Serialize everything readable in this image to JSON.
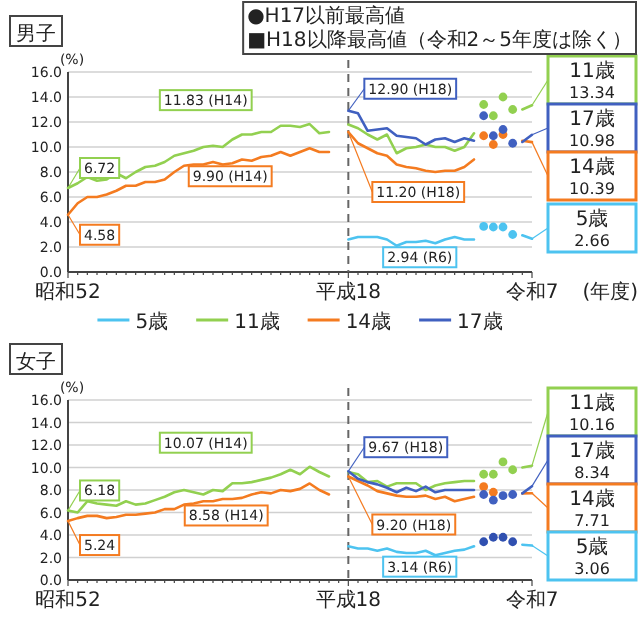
{
  "chart_data": [
    {
      "type": "line",
      "title": "男子",
      "ylabel": "(%)",
      "xlabel": "(年度)",
      "legend": "bottom",
      "grid": "y",
      "categories": [
        "昭和52",
        null,
        null,
        null,
        null,
        null,
        null,
        null,
        null,
        null,
        null,
        null,
        null,
        null,
        null,
        null,
        null,
        null,
        null,
        null,
        null,
        null,
        null,
        null,
        null,
        null,
        null,
        null,
        null,
        "平成18",
        null,
        null,
        null,
        null,
        null,
        null,
        null,
        null,
        null,
        null,
        null,
        null,
        null,
        null,
        null,
        null,
        null,
        null,
        "令和7"
      ],
      "ylim": [
        0,
        16
      ],
      "yticks": [
        {
          "value": 0,
          "label": "0.0"
        },
        {
          "value": 2,
          "label": "2.0"
        },
        {
          "value": 4,
          "label": "4.0"
        },
        {
          "value": 6,
          "label": "6.0"
        },
        {
          "value": 8,
          "label": "8.0"
        },
        {
          "value": 10,
          "label": "10.0"
        },
        {
          "value": 12,
          "label": "12.0"
        },
        {
          "value": 14,
          "label": "14.0"
        },
        {
          "value": 16,
          "label": "16.0"
        }
      ],
      "ref_lines": [
        {
          "axis": "x",
          "value": "平成18",
          "color": "#666666",
          "line_style": "dashed"
        }
      ],
      "series": [
        {
          "name": "5歳",
          "color": "#4dc3f0",
          "values": [
            null,
            null,
            null,
            null,
            null,
            null,
            null,
            null,
            null,
            null,
            null,
            null,
            null,
            null,
            null,
            null,
            null,
            null,
            null,
            null,
            null,
            null,
            null,
            null,
            null,
            null,
            null,
            null,
            null,
            2.6,
            2.8,
            2.8,
            2.8,
            2.6,
            2.1,
            2.4,
            2.4,
            2.5,
            2.3,
            2.6,
            2.8,
            2.6,
            2.6,
            null,
            null,
            null,
            null,
            2.94,
            2.66
          ]
        },
        {
          "name": "11歳",
          "color": "#92d050",
          "values": [
            6.72,
            7.1,
            7.6,
            7.3,
            7.4,
            7.9,
            7.5,
            8.0,
            8.4,
            8.5,
            8.8,
            9.3,
            9.5,
            9.7,
            10.0,
            10.1,
            10.0,
            10.6,
            11.0,
            11.0,
            11.2,
            11.2,
            11.7,
            11.7,
            11.6,
            11.83,
            11.1,
            11.2,
            null,
            11.8,
            11.5,
            11.0,
            10.6,
            11.0,
            9.5,
            9.9,
            10.0,
            10.2,
            10.0,
            10.0,
            9.7,
            10.0,
            11.1,
            null,
            null,
            null,
            null,
            13.0,
            13.34
          ]
        },
        {
          "name": "14歳",
          "color": "#f47b20",
          "values": [
            4.58,
            5.5,
            6.0,
            6.0,
            6.2,
            6.5,
            6.9,
            6.9,
            7.2,
            7.2,
            7.4,
            8.0,
            8.5,
            8.6,
            8.6,
            8.8,
            8.6,
            8.7,
            9.0,
            8.9,
            9.2,
            9.3,
            9.6,
            9.3,
            9.6,
            9.9,
            9.6,
            9.6,
            null,
            11.2,
            10.3,
            9.9,
            9.5,
            9.3,
            8.6,
            8.4,
            8.3,
            8.1,
            8.0,
            8.1,
            8.1,
            8.4,
            9.0,
            null,
            null,
            null,
            null,
            10.5,
            10.39
          ]
        },
        {
          "name": "17歳",
          "color": "#4060c0",
          "values": [
            null,
            null,
            null,
            null,
            null,
            null,
            null,
            null,
            null,
            null,
            null,
            null,
            null,
            null,
            null,
            null,
            null,
            null,
            null,
            null,
            null,
            null,
            null,
            null,
            null,
            null,
            null,
            null,
            null,
            12.9,
            12.7,
            11.3,
            11.4,
            11.5,
            10.9,
            10.8,
            10.7,
            10.2,
            10.6,
            10.7,
            10.4,
            10.7,
            10.5,
            null,
            null,
            null,
            null,
            10.4,
            10.98
          ]
        },
        {
          "type": "scatter",
          "color": "#4dc3f0",
          "values": [
            null,
            null,
            null,
            null,
            null,
            null,
            null,
            null,
            null,
            null,
            null,
            null,
            null,
            null,
            null,
            null,
            null,
            null,
            null,
            null,
            null,
            null,
            null,
            null,
            null,
            null,
            null,
            null,
            null,
            null,
            null,
            null,
            null,
            null,
            null,
            null,
            null,
            null,
            null,
            null,
            null,
            null,
            null,
            3.65,
            3.6,
            3.6,
            3.0,
            null,
            null
          ]
        },
        {
          "type": "scatter",
          "color": "#92d050",
          "values": [
            null,
            null,
            null,
            null,
            null,
            null,
            null,
            null,
            null,
            null,
            null,
            null,
            null,
            null,
            null,
            null,
            null,
            null,
            null,
            null,
            null,
            null,
            null,
            null,
            null,
            null,
            null,
            null,
            null,
            null,
            null,
            null,
            null,
            null,
            null,
            null,
            null,
            null,
            null,
            null,
            null,
            null,
            null,
            13.4,
            12.5,
            14.0,
            13.0,
            null,
            null
          ]
        },
        {
          "type": "scatter",
          "color": "#f47b20",
          "values": [
            null,
            null,
            null,
            null,
            null,
            null,
            null,
            null,
            null,
            null,
            null,
            null,
            null,
            null,
            null,
            null,
            null,
            null,
            null,
            null,
            null,
            null,
            null,
            null,
            null,
            null,
            null,
            null,
            null,
            null,
            null,
            null,
            null,
            null,
            null,
            null,
            null,
            null,
            null,
            null,
            null,
            null,
            null,
            10.9,
            10.2,
            11.0,
            null,
            null,
            null
          ]
        },
        {
          "type": "scatter",
          "color": "#4060c0",
          "values": [
            null,
            null,
            null,
            null,
            null,
            null,
            null,
            null,
            null,
            null,
            null,
            null,
            null,
            null,
            null,
            null,
            null,
            null,
            null,
            null,
            null,
            null,
            null,
            null,
            null,
            null,
            null,
            null,
            null,
            null,
            null,
            null,
            null,
            null,
            null,
            null,
            null,
            null,
            null,
            null,
            null,
            null,
            null,
            12.5,
            10.9,
            11.4,
            10.3,
            null,
            null
          ]
        }
      ],
      "annotations": [
        "●H17以前最高値",
        "■H18以降最高値（令和2～5年度は除く）",
        {
          "text": "6.72",
          "x": "昭和52",
          "y": 6.72
        },
        {
          "text": "4.58",
          "x": "昭和52",
          "y": 4.58
        },
        "11.83 (H14)",
        "9.90 (H14)",
        {
          "text": "12.90 (H18)",
          "x": "平成18",
          "y": 12.9
        },
        {
          "text": "11.20 (H18)",
          "x": "平成18",
          "y": 11.2
        },
        "2.94 (R6)",
        {
          "text": "11歳\n13.34",
          "x": "令和7",
          "y": 13.34
        },
        {
          "text": "17歳\n10.98",
          "x": "令和7",
          "y": 10.98
        },
        {
          "text": "14歳\n10.39",
          "x": "令和7",
          "y": 10.39
        },
        {
          "text": "5歳\n2.66",
          "x": "令和7",
          "y": 2.66
        }
      ]
    },
    {
      "type": "line",
      "title": "女子",
      "ylabel": "(%)",
      "grid": "y",
      "categories": [
        "昭和52",
        null,
        null,
        null,
        null,
        null,
        null,
        null,
        null,
        null,
        null,
        null,
        null,
        null,
        null,
        null,
        null,
        null,
        null,
        null,
        null,
        null,
        null,
        null,
        null,
        null,
        null,
        null,
        null,
        "平成18",
        null,
        null,
        null,
        null,
        null,
        null,
        null,
        null,
        null,
        null,
        null,
        null,
        null,
        null,
        null,
        null,
        null,
        null,
        "令和7"
      ],
      "ylim": [
        0,
        16
      ],
      "yticks": [
        {
          "value": 0,
          "label": "0.0"
        },
        {
          "value": 2,
          "label": "2.0"
        },
        {
          "value": 4,
          "label": "4.0"
        },
        {
          "value": 6,
          "label": "6.0"
        },
        {
          "value": 8,
          "label": "8.0"
        },
        {
          "value": 10,
          "label": "10.0"
        },
        {
          "value": 12,
          "label": "12.0"
        },
        {
          "value": 14,
          "label": "14.0"
        },
        {
          "value": 16,
          "label": "16.0"
        }
      ],
      "ref_lines": [
        {
          "axis": "x",
          "value": "平成18",
          "color": "#666666",
          "line_style": "dashed"
        }
      ],
      "series": [
        {
          "color": "#4dc3f0",
          "values": [
            null,
            null,
            null,
            null,
            null,
            null,
            null,
            null,
            null,
            null,
            null,
            null,
            null,
            null,
            null,
            null,
            null,
            null,
            null,
            null,
            null,
            null,
            null,
            null,
            null,
            null,
            null,
            null,
            null,
            3.0,
            2.8,
            2.8,
            2.6,
            2.8,
            2.5,
            2.4,
            2.4,
            2.6,
            2.2,
            2.4,
            2.6,
            2.7,
            3.0,
            null,
            null,
            null,
            null,
            3.14,
            3.06
          ]
        },
        {
          "color": "#92d050",
          "values": [
            6.18,
            6.0,
            7.0,
            6.8,
            6.7,
            6.6,
            7.0,
            6.7,
            6.8,
            7.1,
            7.4,
            7.8,
            8.0,
            7.8,
            7.6,
            8.0,
            7.9,
            8.6,
            8.6,
            8.7,
            8.9,
            9.1,
            9.4,
            9.8,
            9.4,
            10.07,
            9.6,
            9.2,
            null,
            9.6,
            9.4,
            8.7,
            8.8,
            8.3,
            8.6,
            8.6,
            8.6,
            8.0,
            8.4,
            8.6,
            8.7,
            8.8,
            8.8,
            null,
            null,
            null,
            null,
            10.0,
            10.16
          ]
        },
        {
          "color": "#f47b20",
          "values": [
            5.24,
            5.5,
            5.7,
            5.7,
            5.5,
            5.6,
            5.8,
            5.8,
            5.9,
            6.0,
            6.3,
            6.3,
            6.7,
            6.8,
            7.0,
            7.0,
            7.2,
            7.2,
            7.3,
            7.6,
            7.8,
            7.7,
            8.0,
            7.9,
            8.1,
            8.58,
            8.0,
            7.6,
            null,
            9.2,
            8.8,
            8.4,
            7.9,
            7.7,
            7.5,
            7.4,
            7.4,
            7.5,
            7.2,
            7.4,
            7.0,
            7.2,
            7.4,
            null,
            null,
            null,
            null,
            7.7,
            7.71
          ]
        },
        {
          "color": "#4060c0",
          "values": [
            null,
            null,
            null,
            null,
            null,
            null,
            null,
            null,
            null,
            null,
            null,
            null,
            null,
            null,
            null,
            null,
            null,
            null,
            null,
            null,
            null,
            null,
            null,
            null,
            null,
            null,
            null,
            null,
            null,
            9.67,
            9.0,
            8.7,
            8.5,
            8.2,
            7.8,
            8.2,
            7.9,
            8.3,
            7.8,
            8.0,
            8.0,
            8.0,
            8.0,
            null,
            null,
            null,
            null,
            7.7,
            8.34
          ]
        },
        {
          "type": "scatter",
          "color": "#3050b0",
          "values": [
            null,
            null,
            null,
            null,
            null,
            null,
            null,
            null,
            null,
            null,
            null,
            null,
            null,
            null,
            null,
            null,
            null,
            null,
            null,
            null,
            null,
            null,
            null,
            null,
            null,
            null,
            null,
            null,
            null,
            null,
            null,
            null,
            null,
            null,
            null,
            null,
            null,
            null,
            null,
            null,
            null,
            null,
            null,
            3.4,
            3.8,
            3.8,
            3.4,
            null,
            null
          ]
        },
        {
          "type": "scatter",
          "color": "#92d050",
          "values": [
            null,
            null,
            null,
            null,
            null,
            null,
            null,
            null,
            null,
            null,
            null,
            null,
            null,
            null,
            null,
            null,
            null,
            null,
            null,
            null,
            null,
            null,
            null,
            null,
            null,
            null,
            null,
            null,
            null,
            null,
            null,
            null,
            null,
            null,
            null,
            null,
            null,
            null,
            null,
            null,
            null,
            null,
            null,
            9.4,
            9.4,
            10.5,
            9.8,
            null,
            null
          ]
        },
        {
          "type": "scatter",
          "color": "#f47b20",
          "values": [
            null,
            null,
            null,
            null,
            null,
            null,
            null,
            null,
            null,
            null,
            null,
            null,
            null,
            null,
            null,
            null,
            null,
            null,
            null,
            null,
            null,
            null,
            null,
            null,
            null,
            null,
            null,
            null,
            null,
            null,
            null,
            null,
            null,
            null,
            null,
            null,
            null,
            null,
            null,
            null,
            null,
            null,
            null,
            8.3,
            7.8,
            null,
            null,
            null,
            null
          ]
        },
        {
          "type": "scatter",
          "color": "#4060c0",
          "values": [
            null,
            null,
            null,
            null,
            null,
            null,
            null,
            null,
            null,
            null,
            null,
            null,
            null,
            null,
            null,
            null,
            null,
            null,
            null,
            null,
            null,
            null,
            null,
            null,
            null,
            null,
            null,
            null,
            null,
            null,
            null,
            null,
            null,
            null,
            null,
            null,
            null,
            null,
            null,
            null,
            null,
            null,
            null,
            7.6,
            7.1,
            7.5,
            7.6,
            null,
            null
          ]
        }
      ],
      "annotations": [
        {
          "text": "6.18",
          "x": "昭和52",
          "y": 6.18
        },
        {
          "text": "5.24",
          "x": "昭和52",
          "y": 5.24
        },
        "10.07 (H14)",
        "8.58 (H14)",
        {
          "text": "9.67 (H18)",
          "x": "平成18",
          "y": 9.67
        },
        {
          "text": "9.20 (H18)",
          "x": "平成18",
          "y": 9.2
        },
        "3.14 (R6)",
        {
          "text": "11歳\n10.16",
          "x": "令和7",
          "y": 10.16
        },
        {
          "text": "17歳\n8.34",
          "x": "令和7",
          "y": 8.34
        },
        {
          "text": "14歳\n7.71",
          "x": "令和7",
          "y": 7.71
        },
        {
          "text": "5歳\n3.06",
          "x": "令和7",
          "y": 3.06
        }
      ]
    }
  ]
}
